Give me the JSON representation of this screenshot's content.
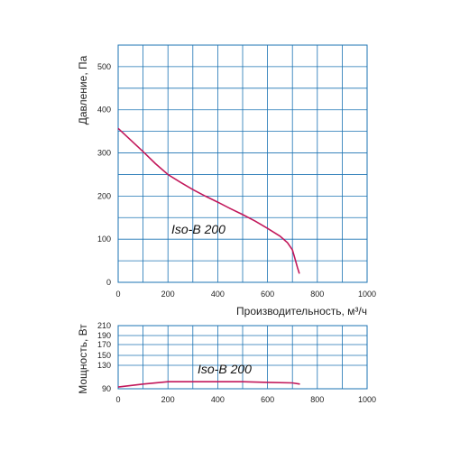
{
  "chart_data": [
    {
      "type": "line",
      "title": "",
      "xlabel": "Производительность, м³/ч",
      "ylabel": "Давление, Па",
      "xlim": [
        0,
        1000
      ],
      "ylim": [
        0,
        550
      ],
      "xticks": [
        "0",
        "200",
        "400",
        "600",
        "800",
        "1000"
      ],
      "yticks": [
        "0",
        "100",
        "200",
        "300",
        "400",
        "500"
      ],
      "grid": true,
      "annotations": [
        "Iso-B 200"
      ],
      "colors": {
        "curve": "#c2185b",
        "grid": "#1b73b3"
      },
      "series": [
        {
          "x": [
            0,
            50,
            100,
            150,
            200,
            250,
            300,
            350,
            400,
            450,
            500,
            550,
            600,
            650,
            680,
            700,
            710,
            720,
            728
          ],
          "y": [
            357,
            330,
            303,
            275,
            250,
            232,
            215,
            200,
            186,
            171,
            157,
            142,
            125,
            107,
            92,
            75,
            55,
            35,
            20
          ]
        }
      ]
    },
    {
      "type": "line",
      "title": "",
      "xlabel": "",
      "ylabel": "Мощность, Вт",
      "xlim": [
        0,
        1000
      ],
      "ylim": [
        90,
        210
      ],
      "xticks": [
        "0",
        "200",
        "400",
        "600",
        "800",
        "1000"
      ],
      "yticks": [
        "90",
        "130",
        "150",
        "170",
        "190",
        "210"
      ],
      "grid": true,
      "annotations": [
        "Iso-B 200"
      ],
      "colors": {
        "curve": "#c2185b",
        "grid": "#1b73b3"
      },
      "series": [
        {
          "x": [
            0,
            100,
            200,
            300,
            400,
            500,
            600,
            700,
            730
          ],
          "y": [
            93,
            98,
            102,
            102,
            102,
            102,
            101,
            100,
            98
          ]
        }
      ]
    }
  ]
}
